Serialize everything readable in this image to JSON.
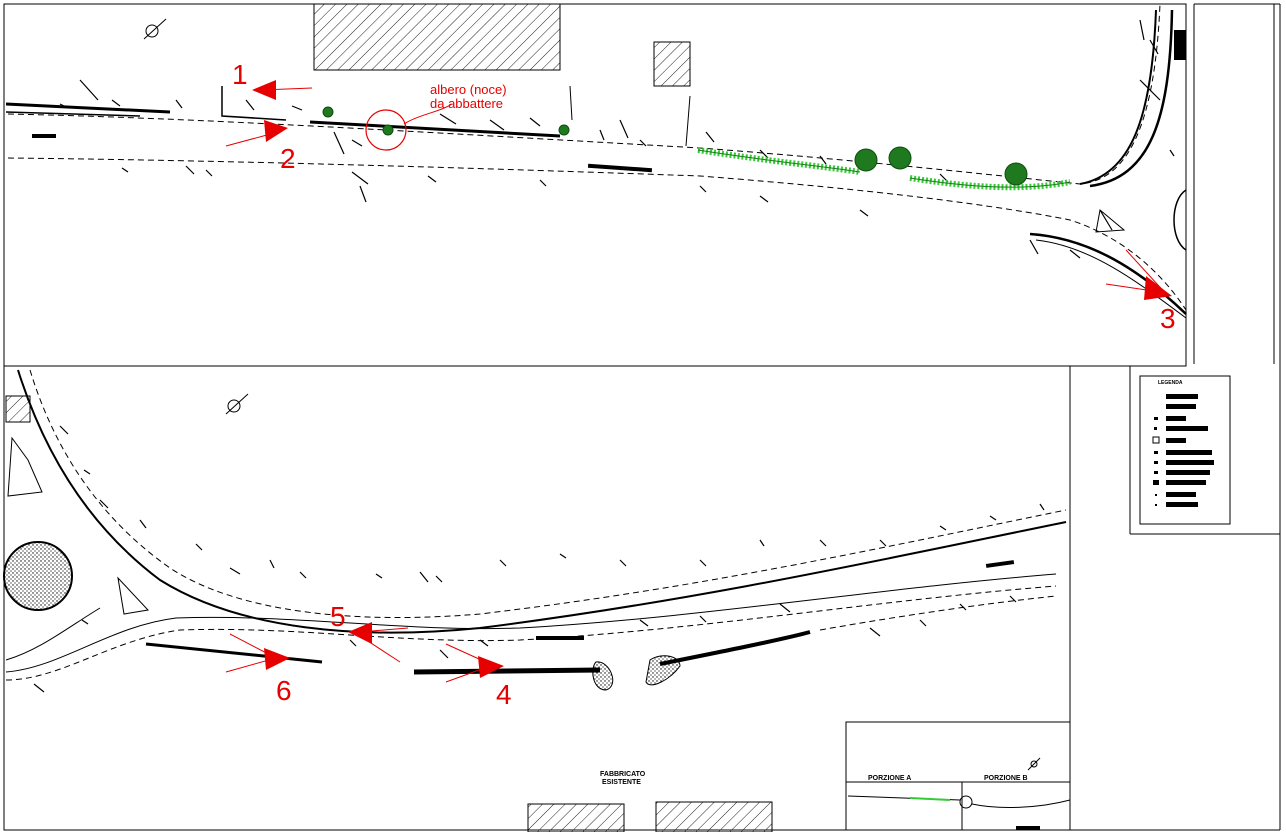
{
  "sheet": {
    "panel_top": {
      "markers": [
        "1",
        "2",
        "3"
      ],
      "annotation": {
        "line1": "albero (noce)",
        "line2": "da abbattere"
      }
    },
    "panel_bottom": {
      "markers": [
        "4",
        "5",
        "6"
      ],
      "building_label": {
        "line1": "FABBRICATO",
        "line2": "ESISTENTE"
      }
    },
    "legend": {
      "title": "LEGENDA"
    },
    "keymap": {
      "left_label": "PORZIONE A",
      "right_label": "PORZIONE B"
    }
  },
  "colors": {
    "marker": "#e60000",
    "vegetation": "#1f7a1f",
    "hedge": "#33cc33",
    "linework": "#000000"
  }
}
